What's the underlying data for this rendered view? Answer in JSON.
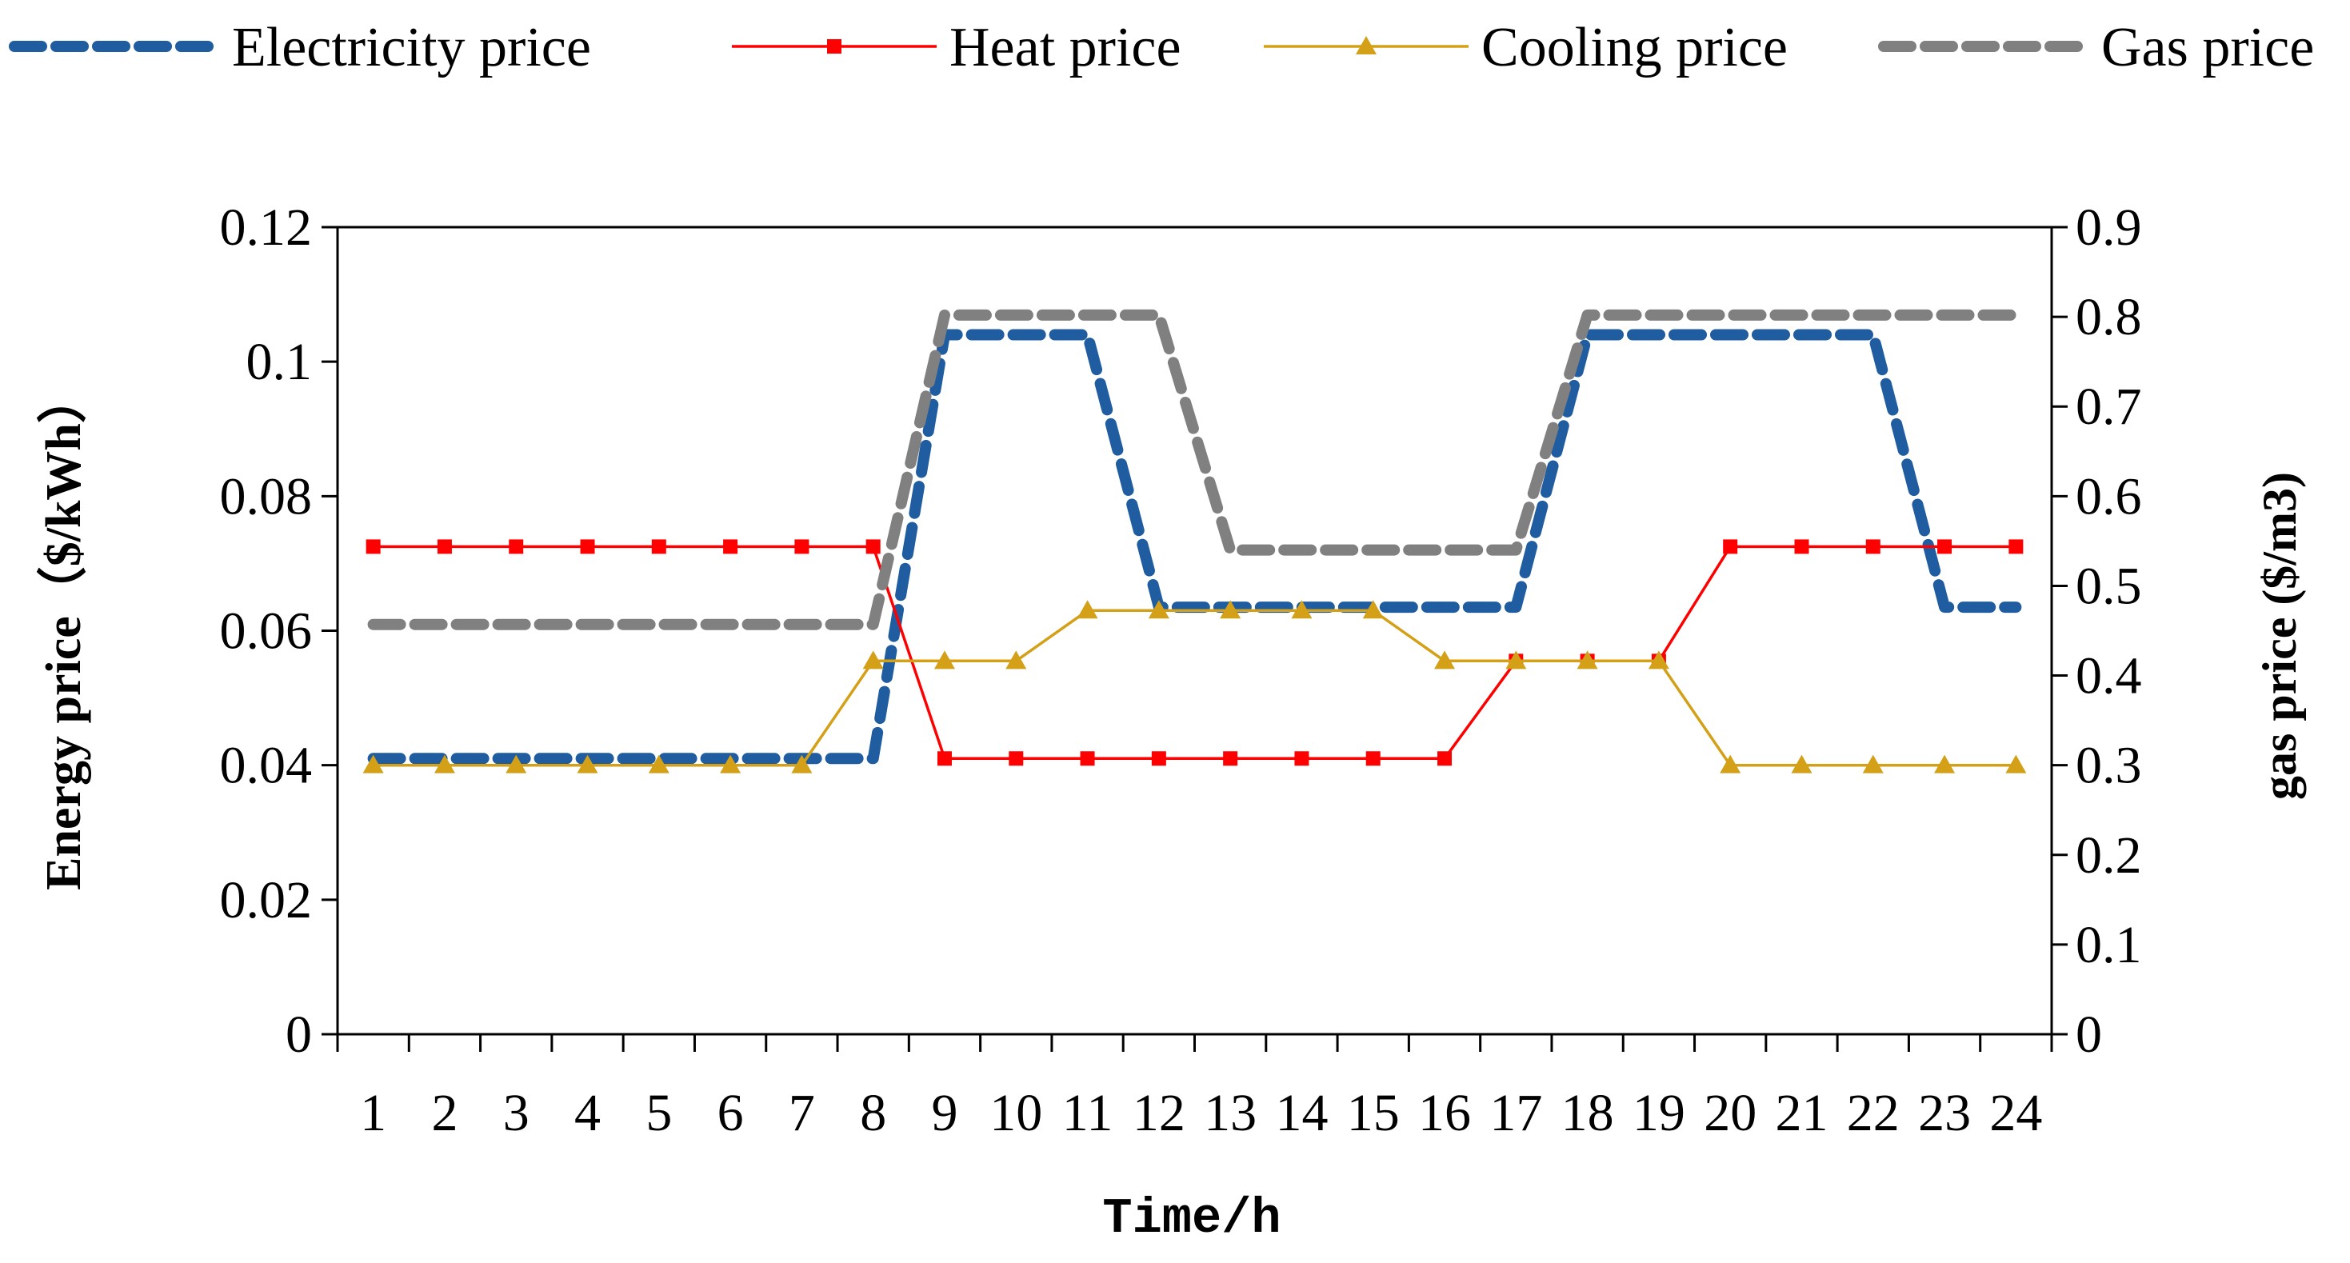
{
  "chart_data": {
    "type": "line",
    "title": "",
    "xlabel": "Time/h",
    "ylabel": "Energy price（$/kWh）",
    "y2label": "gas price ($/m3)",
    "categories": [
      "1",
      "2",
      "3",
      "4",
      "5",
      "6",
      "7",
      "8",
      "9",
      "10",
      "11",
      "12",
      "13",
      "14",
      "15",
      "16",
      "17",
      "18",
      "19",
      "20",
      "21",
      "22",
      "23",
      "24"
    ],
    "ylim": [
      0,
      0.12
    ],
    "y_ticks": [
      "0",
      "0.02",
      "0.04",
      "0.06",
      "0.08",
      "0.1",
      "0.12"
    ],
    "y2lim": [
      0,
      0.9
    ],
    "y2_ticks": [
      "0",
      "0.1",
      "0.2",
      "0.3",
      "0.4",
      "0.5",
      "0.6",
      "0.7",
      "0.8",
      "0.9"
    ],
    "grid": false,
    "legend_position": "top",
    "series": [
      {
        "name": "Electricity price",
        "axis": "left",
        "style": "dashed",
        "marker": "none",
        "color": "#1f5da0",
        "values": [
          0.041,
          0.041,
          0.041,
          0.041,
          0.041,
          0.041,
          0.041,
          0.041,
          0.104,
          0.104,
          0.104,
          0.0635,
          0.0635,
          0.0635,
          0.0635,
          0.0635,
          0.0635,
          0.104,
          0.104,
          0.104,
          0.104,
          0.104,
          0.0635,
          0.0635
        ]
      },
      {
        "name": "Heat price",
        "axis": "left",
        "style": "solid",
        "marker": "square",
        "color": "#ff0000",
        "values": [
          0.0725,
          0.0725,
          0.0725,
          0.0725,
          0.0725,
          0.0725,
          0.0725,
          0.0725,
          0.041,
          0.041,
          0.041,
          0.041,
          0.041,
          0.041,
          0.041,
          0.041,
          0.0555,
          0.0555,
          0.0555,
          0.0725,
          0.0725,
          0.0725,
          0.0725,
          0.0725
        ]
      },
      {
        "name": "Cooling price",
        "axis": "left",
        "style": "solid",
        "marker": "triangle",
        "color": "#d4a017",
        "values": [
          0.04,
          0.04,
          0.04,
          0.04,
          0.04,
          0.04,
          0.04,
          0.0555,
          0.0555,
          0.0555,
          0.063,
          0.063,
          0.063,
          0.063,
          0.063,
          0.0555,
          0.0555,
          0.0555,
          0.0555,
          0.04,
          0.04,
          0.04,
          0.04,
          0.04
        ]
      },
      {
        "name": "Gas price",
        "axis": "right",
        "style": "dashed",
        "marker": "none",
        "color": "#808080",
        "values": [
          0.457,
          0.457,
          0.457,
          0.457,
          0.457,
          0.457,
          0.457,
          0.457,
          0.802,
          0.802,
          0.802,
          0.802,
          0.54,
          0.54,
          0.54,
          0.54,
          0.54,
          0.802,
          0.802,
          0.802,
          0.802,
          0.802,
          0.802,
          0.802
        ]
      }
    ]
  }
}
